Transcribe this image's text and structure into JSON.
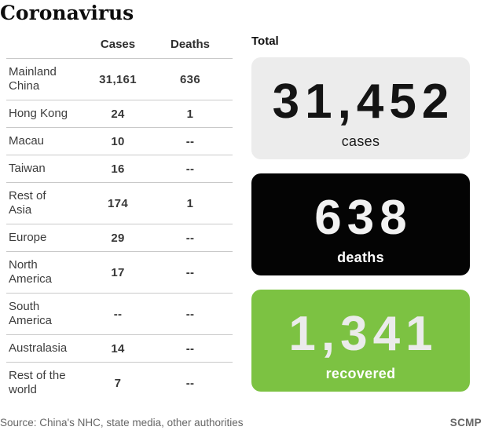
{
  "title": "Coronavirus",
  "table": {
    "headers": {
      "cases": "Cases",
      "deaths": "Deaths"
    },
    "rows": [
      {
        "region": "Mainland China",
        "cases": "31,161",
        "deaths": "636"
      },
      {
        "region": "Hong Kong",
        "cases": "24",
        "deaths": "1"
      },
      {
        "region": "Macau",
        "cases": "10",
        "deaths": "--"
      },
      {
        "region": "Taiwan",
        "cases": "16",
        "deaths": "--"
      },
      {
        "region": "Rest of Asia",
        "cases": "174",
        "deaths": "1"
      },
      {
        "region": "Europe",
        "cases": "29",
        "deaths": "--"
      },
      {
        "region": "North America",
        "cases": "17",
        "deaths": "--"
      },
      {
        "region": "South America",
        "cases": "--",
        "deaths": "--"
      },
      {
        "region": "Australasia",
        "cases": "14",
        "deaths": "--"
      },
      {
        "region": "Rest of the world",
        "cases": "7",
        "deaths": "--"
      }
    ]
  },
  "totals": {
    "label": "Total",
    "cards": [
      {
        "value": "31,452",
        "label": "cases",
        "bg": "#ececec",
        "value_color": "#141414",
        "label_color": "#1a1a1a"
      },
      {
        "value": "638",
        "label": "deaths",
        "bg": "#040404",
        "value_color": "#f2f2f2",
        "label_color": "#ffffff"
      },
      {
        "value": "1,341",
        "label": "recovered",
        "bg": "#7cc242",
        "value_color": "#ebebeb",
        "label_color": "#ffffff"
      }
    ]
  },
  "footer": {
    "source": "Source: China's NHC, state media, other authorities",
    "brand": "SCMP"
  },
  "chart_data": {
    "type": "table",
    "title": "Coronavirus",
    "columns": [
      "Region",
      "Cases",
      "Deaths"
    ],
    "rows": [
      [
        "Mainland China",
        31161,
        636
      ],
      [
        "Hong Kong",
        24,
        1
      ],
      [
        "Macau",
        10,
        null
      ],
      [
        "Taiwan",
        16,
        null
      ],
      [
        "Rest of Asia",
        174,
        1
      ],
      [
        "Europe",
        29,
        null
      ],
      [
        "North America",
        17,
        null
      ],
      [
        "South America",
        null,
        null
      ],
      [
        "Australasia",
        14,
        null
      ],
      [
        "Rest of the world",
        7,
        null
      ]
    ],
    "totals": {
      "cases": 31452,
      "deaths": 638,
      "recovered": 1341
    },
    "accent_colors": {
      "cases_bg": "#ececec",
      "deaths_bg": "#040404",
      "recovered_bg": "#7cc242"
    },
    "source": "Source: China's NHC, state media, other authorities",
    "brand": "SCMP"
  }
}
